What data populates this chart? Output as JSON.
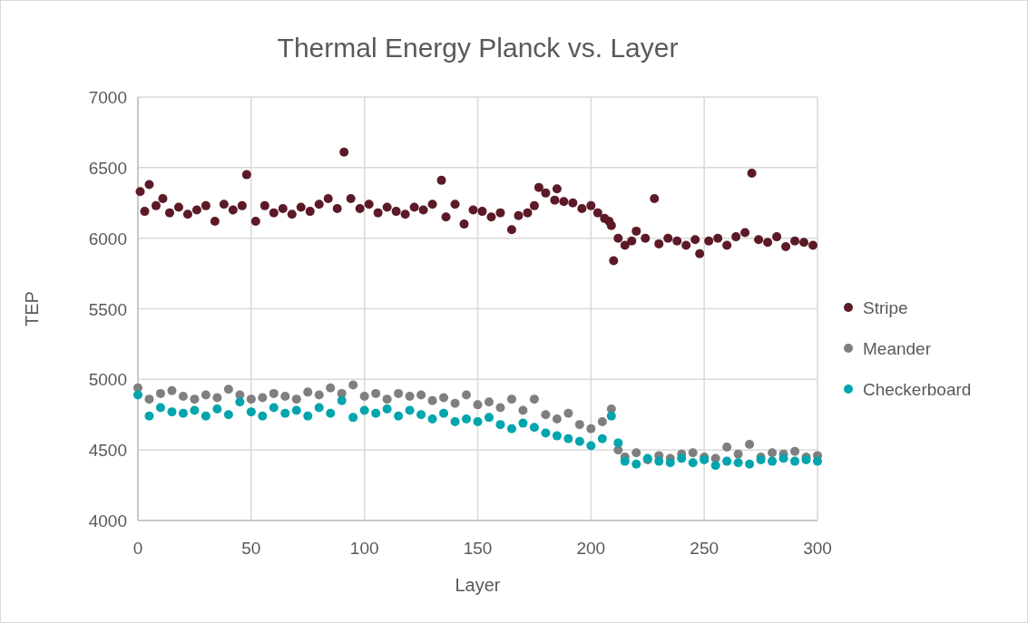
{
  "chart_data": {
    "type": "scatter",
    "title": "Thermal Energy Planck vs. Layer",
    "xlabel": "Layer",
    "ylabel": "TEP",
    "xlim": [
      0,
      300
    ],
    "xticks": [
      0,
      50,
      100,
      150,
      200,
      250,
      300
    ],
    "ylim": [
      4000,
      7000
    ],
    "yticks": [
      4000,
      4500,
      5000,
      5500,
      6000,
      6500,
      7000
    ],
    "grid": true,
    "legend": "right",
    "marker": "circle",
    "series": [
      {
        "name": "Stripe",
        "color": "#5c1a27",
        "x": [
          1,
          3,
          5,
          8,
          11,
          14,
          18,
          22,
          26,
          30,
          34,
          38,
          42,
          46,
          48,
          52,
          56,
          60,
          64,
          68,
          72,
          76,
          80,
          84,
          88,
          91,
          94,
          98,
          102,
          106,
          110,
          114,
          118,
          122,
          126,
          130,
          134,
          136,
          140,
          144,
          148,
          152,
          156,
          160,
          165,
          168,
          172,
          175,
          177,
          180,
          184,
          185,
          188,
          192,
          196,
          200,
          203,
          206,
          208,
          209,
          210,
          212,
          215,
          218,
          220,
          224,
          228,
          230,
          234,
          238,
          242,
          246,
          248,
          252,
          256,
          260,
          264,
          268,
          271,
          274,
          278,
          282,
          286,
          290,
          294,
          298
        ],
        "values": [
          6330,
          6190,
          6380,
          6230,
          6280,
          6180,
          6220,
          6170,
          6200,
          6230,
          6120,
          6240,
          6200,
          6230,
          6450,
          6120,
          6230,
          6180,
          6210,
          6170,
          6220,
          6190,
          6240,
          6280,
          6210,
          6610,
          6280,
          6210,
          6240,
          6180,
          6220,
          6190,
          6170,
          6220,
          6200,
          6240,
          6410,
          6150,
          6240,
          6100,
          6200,
          6190,
          6150,
          6180,
          6060,
          6160,
          6180,
          6230,
          6360,
          6320,
          6270,
          6350,
          6260,
          6250,
          6210,
          6230,
          6180,
          6140,
          6120,
          6090,
          5840,
          6000,
          5950,
          5980,
          6050,
          6000,
          6280,
          5960,
          6000,
          5980,
          5950,
          5990,
          5890,
          5980,
          6000,
          5950,
          6010,
          6040,
          6460,
          5990,
          5970,
          6010,
          5940,
          5980,
          5970,
          5950
        ]
      },
      {
        "name": "Meander",
        "color": "#7f7f7f",
        "x": [
          0,
          5,
          10,
          15,
          20,
          25,
          30,
          35,
          40,
          45,
          50,
          55,
          60,
          65,
          70,
          75,
          80,
          85,
          90,
          95,
          100,
          105,
          110,
          115,
          120,
          125,
          130,
          135,
          140,
          145,
          150,
          155,
          160,
          165,
          170,
          175,
          180,
          185,
          190,
          195,
          200,
          205,
          209,
          212,
          215,
          220,
          225,
          230,
          235,
          240,
          245,
          250,
          255,
          260,
          265,
          270,
          275,
          280,
          285,
          290,
          295,
          300
        ],
        "values": [
          4940,
          4860,
          4900,
          4920,
          4880,
          4860,
          4890,
          4870,
          4930,
          4890,
          4860,
          4870,
          4900,
          4880,
          4860,
          4910,
          4890,
          4940,
          4900,
          4960,
          4880,
          4900,
          4860,
          4900,
          4880,
          4890,
          4850,
          4870,
          4830,
          4890,
          4820,
          4840,
          4800,
          4860,
          4780,
          4860,
          4750,
          4720,
          4760,
          4680,
          4650,
          4700,
          4790,
          4500,
          4450,
          4480,
          4430,
          4460,
          4440,
          4470,
          4480,
          4450,
          4440,
          4520,
          4470,
          4540,
          4450,
          4480,
          4470,
          4490,
          4450,
          4460
        ]
      },
      {
        "name": "Checkerboard",
        "color": "#00a5ad",
        "x": [
          0,
          5,
          10,
          15,
          20,
          25,
          30,
          35,
          40,
          45,
          50,
          55,
          60,
          65,
          70,
          75,
          80,
          85,
          90,
          95,
          100,
          105,
          110,
          115,
          120,
          125,
          130,
          135,
          140,
          145,
          150,
          155,
          160,
          165,
          170,
          175,
          180,
          185,
          190,
          195,
          200,
          205,
          209,
          212,
          215,
          220,
          225,
          230,
          235,
          240,
          245,
          250,
          255,
          260,
          265,
          270,
          275,
          280,
          285,
          290,
          295,
          300
        ],
        "values": [
          4890,
          4740,
          4800,
          4770,
          4760,
          4780,
          4740,
          4790,
          4750,
          4840,
          4770,
          4740,
          4800,
          4760,
          4780,
          4740,
          4800,
          4760,
          4850,
          4730,
          4780,
          4760,
          4790,
          4740,
          4780,
          4750,
          4720,
          4760,
          4700,
          4720,
          4700,
          4730,
          4680,
          4650,
          4690,
          4660,
          4620,
          4600,
          4580,
          4560,
          4530,
          4580,
          4740,
          4550,
          4420,
          4400,
          4440,
          4420,
          4410,
          4440,
          4410,
          4430,
          4390,
          4420,
          4410,
          4400,
          4430,
          4420,
          4440,
          4420,
          4430,
          4420
        ]
      }
    ]
  }
}
